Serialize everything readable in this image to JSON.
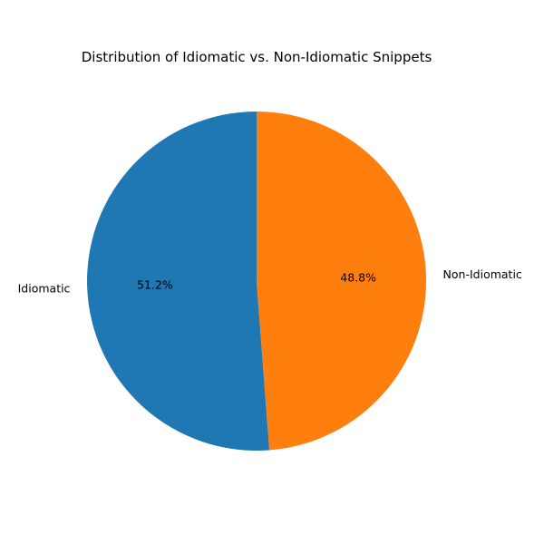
{
  "chart_data": {
    "type": "pie",
    "title": "Distribution of Idiomatic vs. Non-Idiomatic Snippets",
    "start_angle_deg": 90,
    "direction": "counterclockwise",
    "legend": "none",
    "slices": [
      {
        "label": "Idiomatic",
        "value": 51.2,
        "pct_label": "51.2%",
        "color": "#1f77b4"
      },
      {
        "label": "Non-Idiomatic",
        "value": 48.8,
        "pct_label": "48.8%",
        "color": "#ff7f0e"
      }
    ]
  }
}
